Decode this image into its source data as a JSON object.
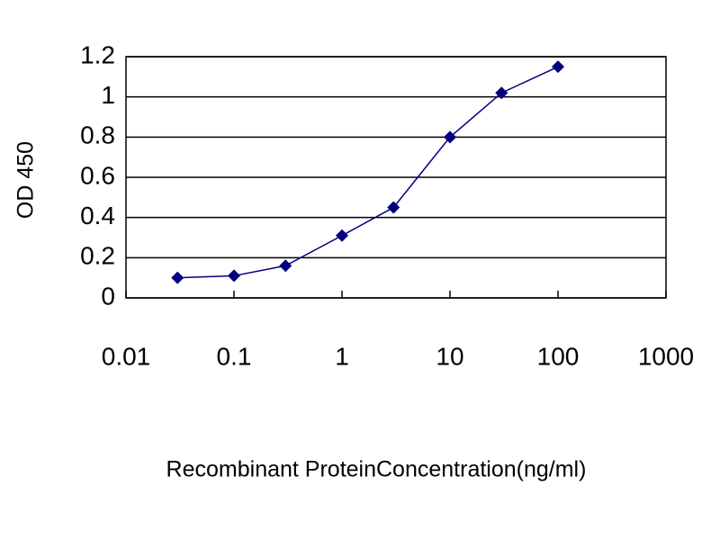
{
  "chart_data": {
    "type": "line",
    "x_label": "Recombinant ProteinConcentration(ng/ml)",
    "y_label": "OD 450",
    "x": [
      0.03,
      0.1,
      0.3,
      1,
      3,
      10,
      30,
      100
    ],
    "series": [
      {
        "color": "#000080",
        "values": [
          0.1,
          0.11,
          0.16,
          0.31,
          0.45,
          0.8,
          1.02,
          1.15
        ]
      }
    ],
    "xscale": "log",
    "xlim": [
      0.01,
      1000
    ],
    "xticks": [
      0.01,
      0.1,
      1,
      10,
      100,
      1000
    ],
    "ylim": [
      0,
      1.2
    ],
    "yticks": [
      0,
      0.2,
      0.4,
      0.6,
      0.8,
      1,
      1.2
    ],
    "grid": true
  }
}
